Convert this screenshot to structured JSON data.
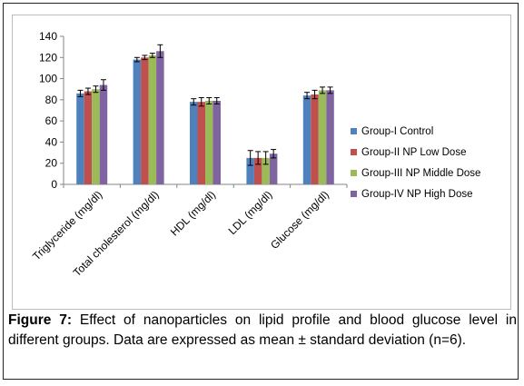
{
  "chart_data": {
    "type": "bar",
    "title": "",
    "xlabel": "",
    "ylabel": "",
    "ylim": [
      0,
      140
    ],
    "yticks": [
      0,
      20,
      40,
      60,
      80,
      100,
      120,
      140
    ],
    "grid": false,
    "legend_position": "right",
    "categories": [
      "Triglyceride (mg/dl)",
      "Total cholesterol (mg/dl)",
      "HDL (mg/dl)",
      "LDL (mg/dl)",
      "Glucose (mg/dl)"
    ],
    "series": [
      {
        "name": "Group-I Control",
        "color": "#4f81bd",
        "values": [
          86,
          118,
          78,
          25,
          84
        ],
        "errors": [
          3,
          2,
          3,
          7,
          3
        ]
      },
      {
        "name": "Group-II NP Low Dose",
        "color": "#c0504d",
        "values": [
          88,
          120,
          78,
          25,
          85
        ],
        "errors": [
          3,
          2,
          4,
          6,
          4
        ]
      },
      {
        "name": "Group-III NP Middle Dose",
        "color": "#9bbb59",
        "values": [
          90,
          122,
          79,
          25,
          89
        ],
        "errors": [
          3,
          2,
          3,
          6,
          3
        ]
      },
      {
        "name": "Group-IV NP High Dose",
        "color": "#8064a2",
        "values": [
          94,
          126,
          79,
          29,
          89
        ],
        "errors": [
          5,
          6,
          3,
          4,
          3
        ]
      }
    ]
  },
  "caption": {
    "label": "Figure 7:",
    "text": " Effect of nanoparticles on lipid profile and blood glucose level in different groups. Data are expressed as mean ± standard deviation (n=6)."
  }
}
